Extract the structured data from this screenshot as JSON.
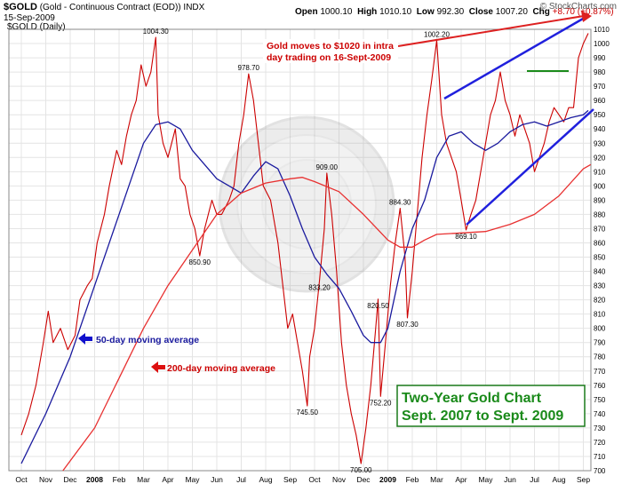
{
  "header": {
    "symbol": "$GOLD",
    "name": "(Gold - Continuous Contract (EOD))",
    "exchange": "INDX",
    "date": "15-Sep-2009",
    "series_label": "$GOLD (Daily)",
    "brand": "© StockCharts.com",
    "ohlc": {
      "open_label": "Open",
      "open": "1000.10",
      "high_label": "High",
      "high": "1010.10",
      "low_label": "Low",
      "low": "992.30",
      "close_label": "Close",
      "close": "1007.20",
      "chg_label": "Chg",
      "chg": "+8.70 (+0.87%)"
    }
  },
  "annotations": {
    "news": "Gold moves to $1020 in intra day trading on 16-Sept-2009",
    "ma50": "50-day moving average",
    "ma200": "200-day moving average",
    "box_line1": "Two-Year Gold Chart",
    "box_line2": "Sept. 2007 to Sept. 2009"
  },
  "chart_data": {
    "type": "line",
    "title": "$GOLD (Daily)",
    "y_axis_position": "right",
    "ylim": [
      700,
      1010
    ],
    "y_ticks": [
      700,
      710,
      720,
      730,
      740,
      750,
      760,
      770,
      780,
      790,
      800,
      810,
      820,
      830,
      840,
      850,
      860,
      870,
      880,
      890,
      900,
      910,
      920,
      930,
      940,
      950,
      960,
      970,
      980,
      990,
      1000,
      1010
    ],
    "x_ticks": [
      {
        "label": "Oct",
        "i": 0
      },
      {
        "label": "Nov",
        "i": 1
      },
      {
        "label": "Dec",
        "i": 2
      },
      {
        "label": "2008",
        "i": 3,
        "bold": true
      },
      {
        "label": "Feb",
        "i": 4
      },
      {
        "label": "Mar",
        "i": 5
      },
      {
        "label": "Apr",
        "i": 6
      },
      {
        "label": "May",
        "i": 7
      },
      {
        "label": "Jun",
        "i": 8
      },
      {
        "label": "Jul",
        "i": 9
      },
      {
        "label": "Aug",
        "i": 10
      },
      {
        "label": "Sep",
        "i": 11
      },
      {
        "label": "Oct",
        "i": 12
      },
      {
        "label": "Nov",
        "i": 13
      },
      {
        "label": "Dec",
        "i": 14
      },
      {
        "label": "2009",
        "i": 15,
        "bold": true
      },
      {
        "label": "Feb",
        "i": 16
      },
      {
        "label": "Mar",
        "i": 17
      },
      {
        "label": "Apr",
        "i": 18
      },
      {
        "label": "May",
        "i": 19
      },
      {
        "label": "Jun",
        "i": 20
      },
      {
        "label": "Jul",
        "i": 21
      },
      {
        "label": "Aug",
        "i": 22
      },
      {
        "label": "Sep",
        "i": 23
      }
    ],
    "series": [
      {
        "name": "$GOLD",
        "color": "#cc0000",
        "points": [
          [
            0,
            725
          ],
          [
            0.3,
            740
          ],
          [
            0.6,
            760
          ],
          [
            0.9,
            790
          ],
          [
            1.1,
            812
          ],
          [
            1.3,
            790
          ],
          [
            1.6,
            800
          ],
          [
            1.9,
            785
          ],
          [
            2.2,
            795
          ],
          [
            2.4,
            820
          ],
          [
            2.7,
            830
          ],
          [
            2.9,
            835
          ],
          [
            3.1,
            860
          ],
          [
            3.4,
            880
          ],
          [
            3.6,
            900
          ],
          [
            3.9,
            925
          ],
          [
            4.1,
            915
          ],
          [
            4.3,
            935
          ],
          [
            4.5,
            950
          ],
          [
            4.7,
            960
          ],
          [
            4.9,
            985
          ],
          [
            5.1,
            970
          ],
          [
            5.3,
            980
          ],
          [
            5.5,
            1004.3
          ],
          [
            5.6,
            950
          ],
          [
            5.8,
            930
          ],
          [
            6.0,
            920
          ],
          [
            6.3,
            940
          ],
          [
            6.5,
            905
          ],
          [
            6.7,
            900
          ],
          [
            6.9,
            880
          ],
          [
            7.1,
            870
          ],
          [
            7.3,
            850.9
          ],
          [
            7.5,
            870
          ],
          [
            7.8,
            890
          ],
          [
            8.0,
            880
          ],
          [
            8.2,
            880
          ],
          [
            8.5,
            890
          ],
          [
            8.7,
            900
          ],
          [
            8.9,
            930
          ],
          [
            9.1,
            950
          ],
          [
            9.3,
            978.7
          ],
          [
            9.5,
            960
          ],
          [
            9.7,
            930
          ],
          [
            9.9,
            900
          ],
          [
            10.2,
            890
          ],
          [
            10.5,
            860
          ],
          [
            10.7,
            830
          ],
          [
            10.9,
            800
          ],
          [
            11.1,
            810
          ],
          [
            11.3,
            790
          ],
          [
            11.5,
            770
          ],
          [
            11.7,
            745.5
          ],
          [
            11.8,
            780
          ],
          [
            12.0,
            800
          ],
          [
            12.2,
            833.2
          ],
          [
            12.4,
            870
          ],
          [
            12.5,
            909
          ],
          [
            12.7,
            880
          ],
          [
            12.9,
            840
          ],
          [
            13.1,
            790
          ],
          [
            13.3,
            760
          ],
          [
            13.5,
            740
          ],
          [
            13.7,
            725
          ],
          [
            13.9,
            705
          ],
          [
            14.1,
            730
          ],
          [
            14.3,
            760
          ],
          [
            14.5,
            800
          ],
          [
            14.6,
            820.5
          ],
          [
            14.7,
            752.2
          ],
          [
            14.9,
            790
          ],
          [
            15.1,
            830
          ],
          [
            15.3,
            860
          ],
          [
            15.5,
            884.3
          ],
          [
            15.7,
            850
          ],
          [
            15.8,
            807.3
          ],
          [
            16.0,
            840
          ],
          [
            16.2,
            880
          ],
          [
            16.4,
            920
          ],
          [
            16.6,
            950
          ],
          [
            16.8,
            975
          ],
          [
            17.0,
            1002.2
          ],
          [
            17.2,
            950
          ],
          [
            17.4,
            930
          ],
          [
            17.6,
            920
          ],
          [
            17.8,
            910
          ],
          [
            18.0,
            890
          ],
          [
            18.2,
            869.1
          ],
          [
            18.4,
            880
          ],
          [
            18.6,
            890
          ],
          [
            18.8,
            910
          ],
          [
            19.0,
            930
          ],
          [
            19.2,
            950
          ],
          [
            19.4,
            960
          ],
          [
            19.6,
            980
          ],
          [
            19.8,
            960
          ],
          [
            20.0,
            950
          ],
          [
            20.2,
            935
          ],
          [
            20.4,
            950
          ],
          [
            20.6,
            940
          ],
          [
            20.8,
            930
          ],
          [
            21.0,
            910
          ],
          [
            21.2,
            920
          ],
          [
            21.4,
            930
          ],
          [
            21.6,
            945
          ],
          [
            21.8,
            955
          ],
          [
            22.0,
            950
          ],
          [
            22.2,
            945
          ],
          [
            22.4,
            955
          ],
          [
            22.6,
            955
          ],
          [
            22.8,
            990
          ],
          [
            23.0,
            1000
          ],
          [
            23.2,
            1007.2
          ]
        ]
      },
      {
        "name": "50-day moving average",
        "color": "#1a1a9e",
        "points": [
          [
            0,
            705
          ],
          [
            1,
            740
          ],
          [
            2,
            780
          ],
          [
            3,
            830
          ],
          [
            4,
            880
          ],
          [
            5,
            930
          ],
          [
            5.5,
            943
          ],
          [
            6,
            945
          ],
          [
            6.5,
            940
          ],
          [
            7,
            925
          ],
          [
            8,
            905
          ],
          [
            9,
            895
          ],
          [
            9.5,
            907
          ],
          [
            10,
            917
          ],
          [
            10.5,
            912
          ],
          [
            11,
            893
          ],
          [
            11.5,
            870
          ],
          [
            12,
            850
          ],
          [
            12.5,
            838
          ],
          [
            13,
            828
          ],
          [
            13.5,
            812
          ],
          [
            14,
            795
          ],
          [
            14.3,
            790
          ],
          [
            14.7,
            790
          ],
          [
            15,
            800
          ],
          [
            15.5,
            840
          ],
          [
            16,
            870
          ],
          [
            16.5,
            890
          ],
          [
            17,
            920
          ],
          [
            17.5,
            935
          ],
          [
            18,
            938
          ],
          [
            18.5,
            930
          ],
          [
            19,
            925
          ],
          [
            19.5,
            930
          ],
          [
            20,
            938
          ],
          [
            20.5,
            943
          ],
          [
            21,
            945
          ],
          [
            21.5,
            942
          ],
          [
            22,
            945
          ],
          [
            22.5,
            948
          ],
          [
            23,
            950
          ],
          [
            23.2,
            953
          ]
        ]
      },
      {
        "name": "200-day moving average",
        "color": "#e83030",
        "points": [
          [
            1.7,
            700
          ],
          [
            3,
            730
          ],
          [
            4,
            765
          ],
          [
            5,
            800
          ],
          [
            6,
            830
          ],
          [
            7,
            855
          ],
          [
            8,
            880
          ],
          [
            9,
            895
          ],
          [
            10,
            902
          ],
          [
            11,
            905
          ],
          [
            11.5,
            906
          ],
          [
            12,
            903
          ],
          [
            13,
            896
          ],
          [
            14,
            880
          ],
          [
            15,
            862
          ],
          [
            15.5,
            857
          ],
          [
            16,
            857
          ],
          [
            16.5,
            862
          ],
          [
            17,
            866
          ],
          [
            18,
            867
          ],
          [
            19,
            868
          ],
          [
            20,
            873
          ],
          [
            21,
            880
          ],
          [
            22,
            893
          ],
          [
            23,
            912
          ],
          [
            23.3,
            915
          ]
        ]
      }
    ],
    "point_labels": [
      {
        "text": "1004.30",
        "x": 5.5,
        "y": 1004.3
      },
      {
        "text": "850.90",
        "x": 7.3,
        "y": 850.9
      },
      {
        "text": "978.70",
        "x": 9.3,
        "y": 978.7
      },
      {
        "text": "909.00",
        "x": 12.5,
        "y": 909
      },
      {
        "text": "833.20",
        "x": 12.2,
        "y": 833.2
      },
      {
        "text": "745.50",
        "x": 11.7,
        "y": 745.5
      },
      {
        "text": "705.00",
        "x": 13.9,
        "y": 705
      },
      {
        "text": "820.50",
        "x": 14.6,
        "y": 820.5
      },
      {
        "text": "752.20",
        "x": 14.7,
        "y": 752.2
      },
      {
        "text": "884.30",
        "x": 15.5,
        "y": 884.3
      },
      {
        "text": "807.30",
        "x": 15.8,
        "y": 807.3
      },
      {
        "text": "1002.20",
        "x": 17.0,
        "y": 1002.2
      },
      {
        "text": "869.10",
        "x": 18.2,
        "y": 869.1
      }
    ]
  }
}
